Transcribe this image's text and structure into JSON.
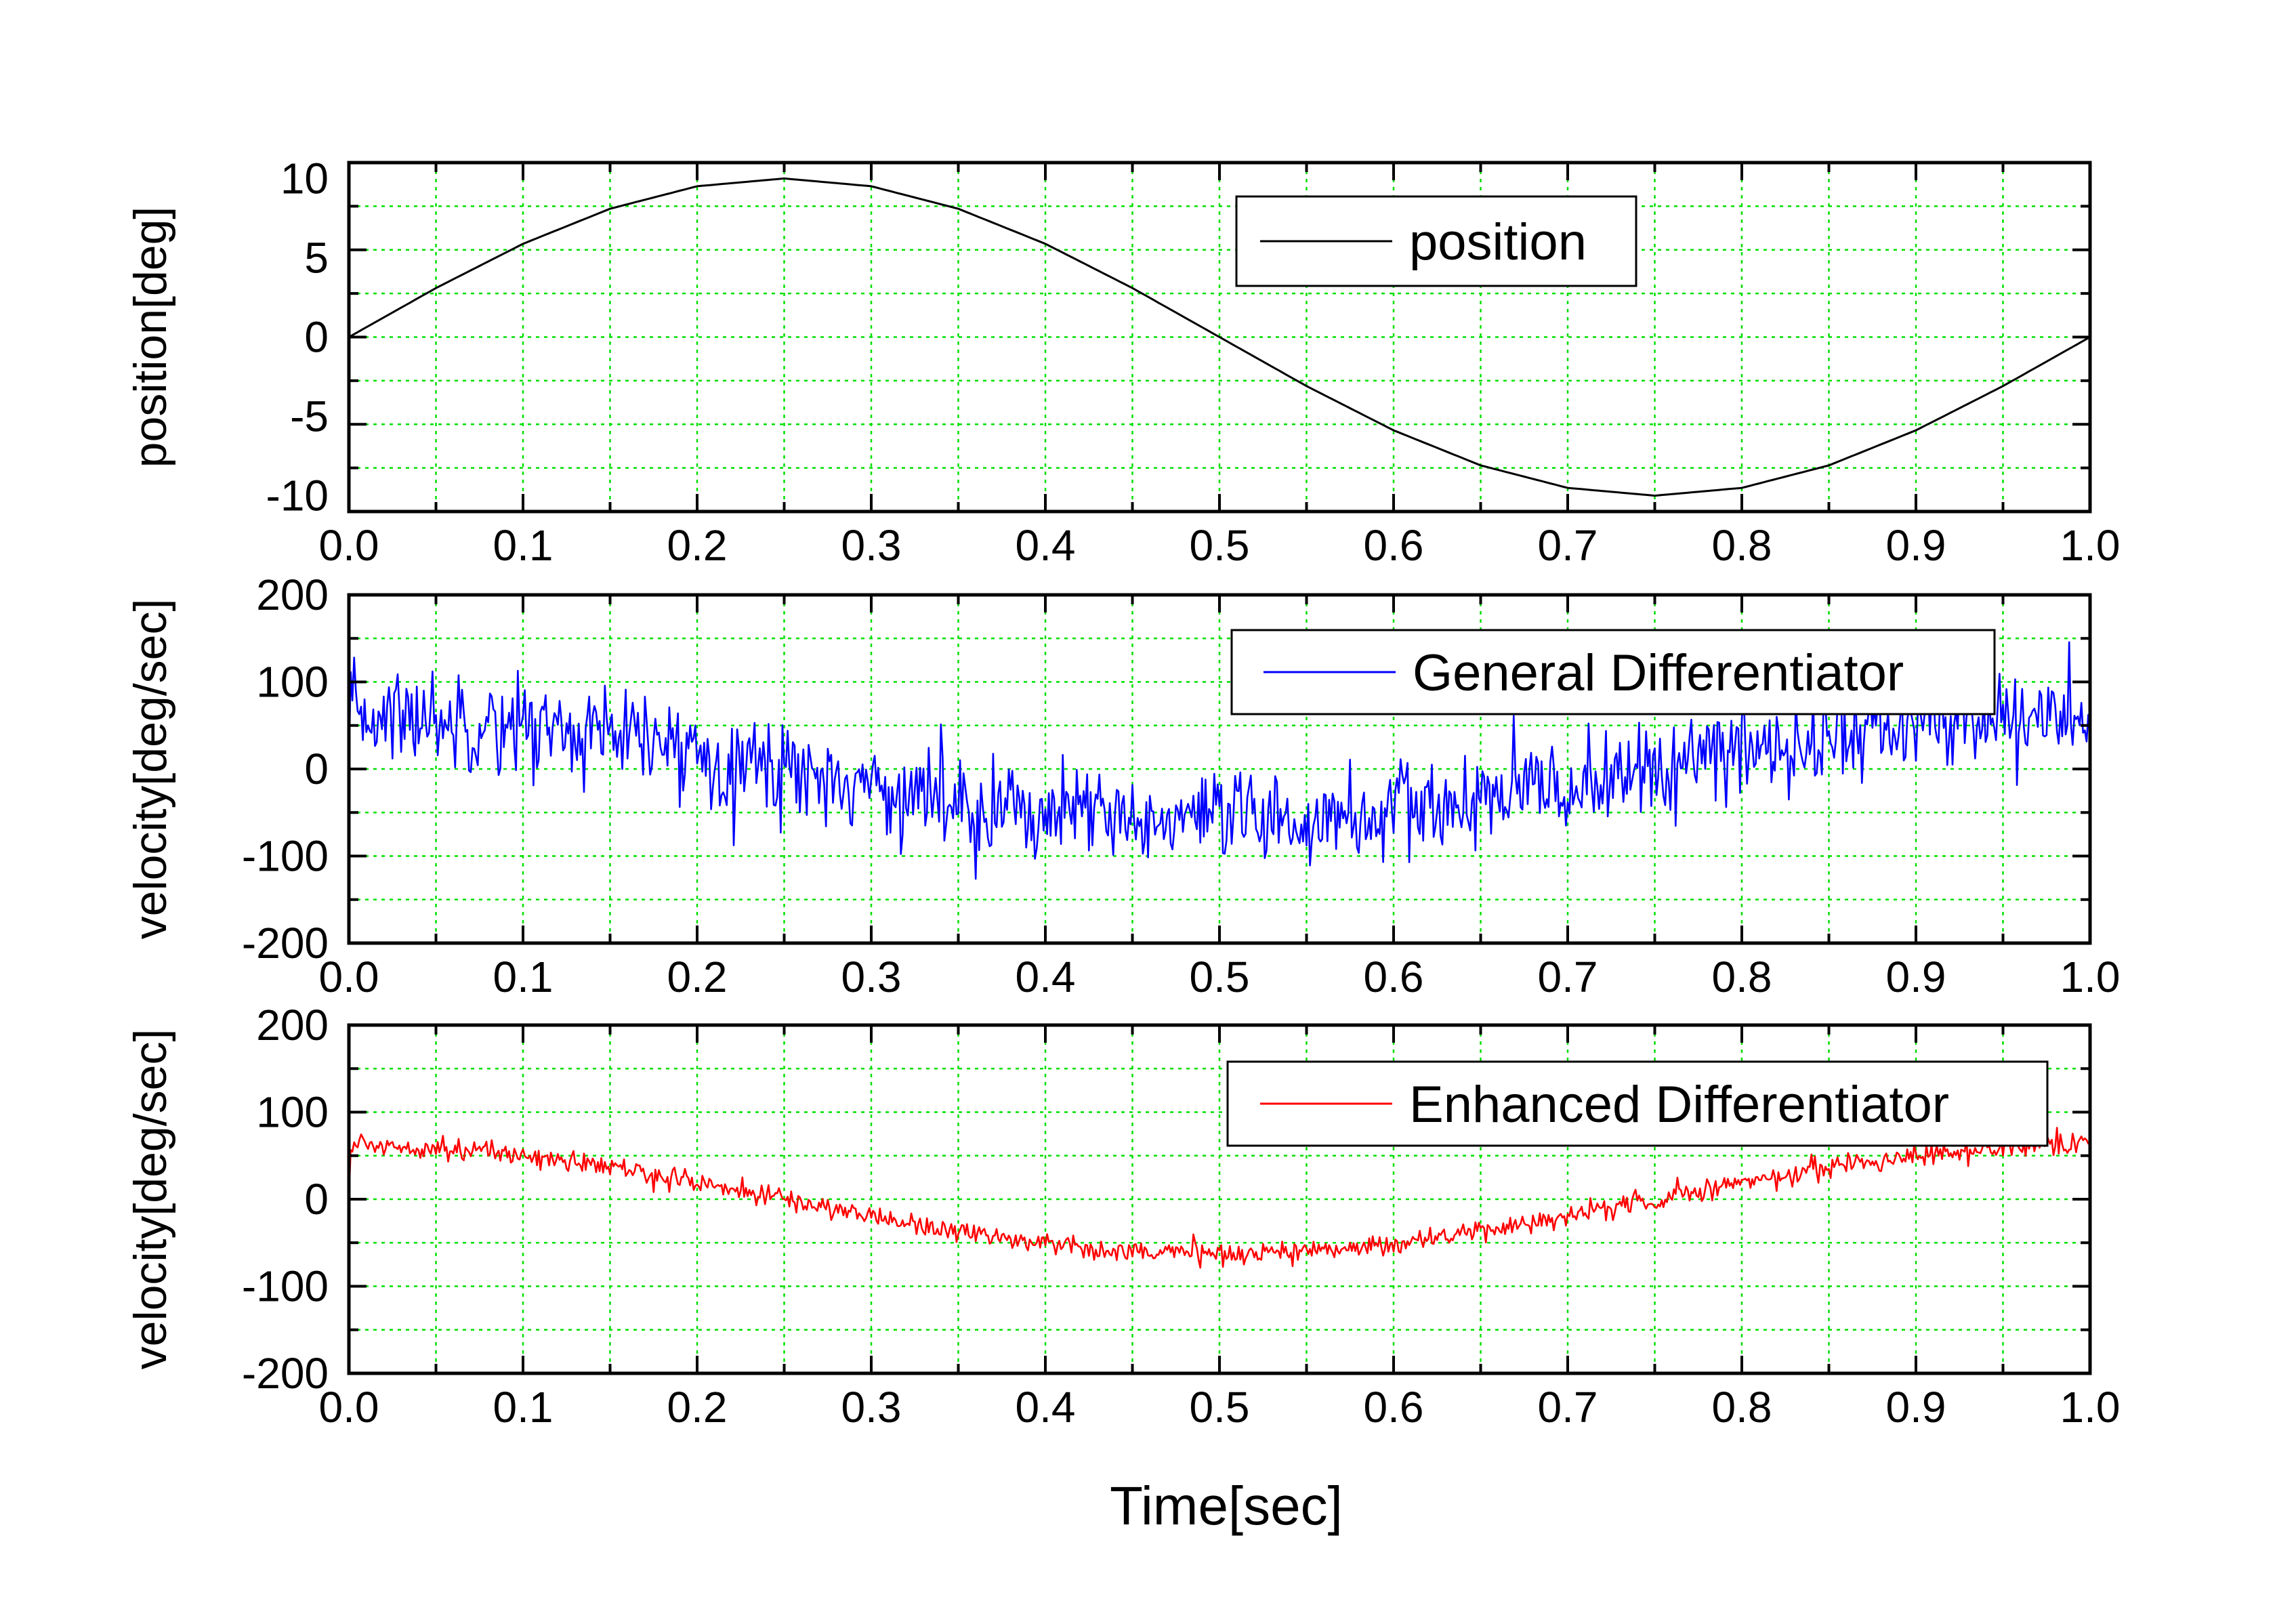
{
  "chart_data": [
    {
      "type": "line",
      "ylabel": "position[deg]",
      "xlim": [
        0.0,
        1.0
      ],
      "ylim": [
        -11,
        11
      ],
      "yticks": [
        10,
        5,
        0,
        -5,
        -10
      ],
      "yticklabels": [
        "10",
        "5",
        "0",
        "-5",
        "-10"
      ],
      "xticks": [
        0.0,
        0.1,
        0.2,
        0.3,
        0.4,
        0.5,
        0.6,
        0.7,
        0.8,
        0.9,
        1.0
      ],
      "xticklabels": [
        "0.0",
        "0.1",
        "0.2",
        "0.3",
        "0.4",
        "0.5",
        "0.6",
        "0.7",
        "0.8",
        "0.9",
        "1.0"
      ],
      "grid": true,
      "legend_position": "top-right",
      "series": [
        {
          "name": "position",
          "color": "#000000",
          "x": [
            0.0,
            0.05,
            0.1,
            0.15,
            0.2,
            0.25,
            0.3,
            0.35,
            0.4,
            0.45,
            0.5,
            0.55,
            0.6,
            0.65,
            0.7,
            0.75,
            0.8,
            0.85,
            0.9,
            0.95,
            1.0
          ],
          "y": [
            0.0,
            3.09,
            5.88,
            8.09,
            9.51,
            10.0,
            9.51,
            8.09,
            5.88,
            3.09,
            0.0,
            -3.09,
            -5.88,
            -8.09,
            -9.51,
            -10.0,
            -9.51,
            -8.09,
            -5.88,
            -3.09,
            0.0
          ]
        }
      ]
    },
    {
      "type": "line",
      "ylabel": "velocity[deg/sec]",
      "xlim": [
        0.0,
        1.0
      ],
      "ylim": [
        -200,
        200
      ],
      "yticks": [
        200,
        100,
        0,
        -100,
        -200
      ],
      "yticklabels": [
        "200",
        "100",
        "0",
        "-100",
        "-200"
      ],
      "xticks": [
        0.0,
        0.1,
        0.2,
        0.3,
        0.4,
        0.5,
        0.6,
        0.7,
        0.8,
        0.9,
        1.0
      ],
      "xticklabels": [
        "0.0",
        "0.1",
        "0.2",
        "0.3",
        "0.4",
        "0.5",
        "0.6",
        "0.7",
        "0.8",
        "0.9",
        "1.0"
      ],
      "grid": true,
      "legend_position": "top-right",
      "noise_amplitude": 45,
      "series": [
        {
          "name": "General Differentiator",
          "color": "#0000ff",
          "x": [
            0.0,
            0.05,
            0.1,
            0.15,
            0.2,
            0.25,
            0.3,
            0.35,
            0.4,
            0.45,
            0.5,
            0.55,
            0.6,
            0.65,
            0.7,
            0.75,
            0.8,
            0.85,
            0.9,
            0.95,
            1.0
          ],
          "y": [
            62.8,
            59.7,
            50.8,
            36.9,
            19.4,
            0.0,
            -19.4,
            -36.9,
            -50.8,
            -59.7,
            -62.8,
            -59.7,
            -50.8,
            -36.9,
            -19.4,
            0.0,
            19.4,
            36.9,
            50.8,
            59.7,
            62.8
          ]
        }
      ]
    },
    {
      "type": "line",
      "ylabel": "velocity[deg/sec]",
      "xlabel": "Time[sec]",
      "xlim": [
        0.0,
        1.0
      ],
      "ylim": [
        -200,
        200
      ],
      "yticks": [
        200,
        100,
        0,
        -100,
        -200
      ],
      "yticklabels": [
        "200",
        "100",
        "0",
        "-100",
        "-200"
      ],
      "xticks": [
        0.0,
        0.1,
        0.2,
        0.3,
        0.4,
        0.5,
        0.6,
        0.7,
        0.8,
        0.9,
        1.0
      ],
      "xticklabels": [
        "0.0",
        "0.1",
        "0.2",
        "0.3",
        "0.4",
        "0.5",
        "0.6",
        "0.7",
        "0.8",
        "0.9",
        "1.0"
      ],
      "grid": true,
      "legend_position": "top-right",
      "noise_amplitude": 10,
      "series": [
        {
          "name": "Enhanced Differentiator",
          "color": "#ff0000",
          "x": [
            0.0,
            0.05,
            0.1,
            0.15,
            0.2,
            0.25,
            0.3,
            0.35,
            0.4,
            0.45,
            0.5,
            0.55,
            0.6,
            0.65,
            0.7,
            0.75,
            0.8,
            0.85,
            0.9,
            0.95,
            1.0
          ],
          "y": [
            62.8,
            59.7,
            50.8,
            36.9,
            19.4,
            0.0,
            -19.4,
            -36.9,
            -50.8,
            -59.7,
            -62.8,
            -59.7,
            -50.8,
            -36.9,
            -19.4,
            0.0,
            19.4,
            36.9,
            50.8,
            59.7,
            62.8
          ]
        }
      ]
    }
  ],
  "colors": {
    "grid": "#00e000",
    "axis": "#000000",
    "background": "#ffffff"
  }
}
